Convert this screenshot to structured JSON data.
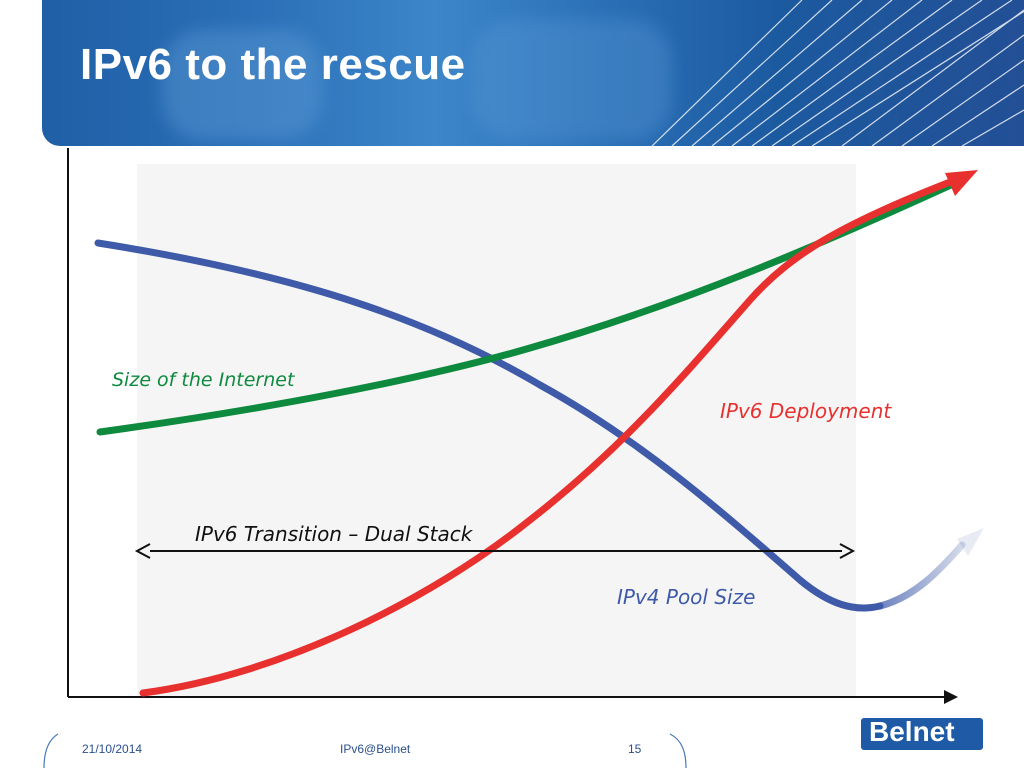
{
  "slide": {
    "title": "IPv6 to the rescue"
  },
  "diagram": {
    "labels": {
      "internet": "Size of the Internet",
      "deployment": "IPv6 Deployment",
      "transition": "IPv6 Transition – Dual Stack",
      "pool": "IPv4 Pool Size"
    },
    "colors": {
      "internet": "#0e8a3e",
      "deployment": "#e8312f",
      "pool": "#3e5aa8",
      "axis": "#111111",
      "plot_background": "#f5f5f5"
    }
  },
  "footer": {
    "date": "21/10/2014",
    "center": "IPv6@Belnet",
    "page": "15"
  },
  "logo": {
    "text": "Belnet"
  }
}
